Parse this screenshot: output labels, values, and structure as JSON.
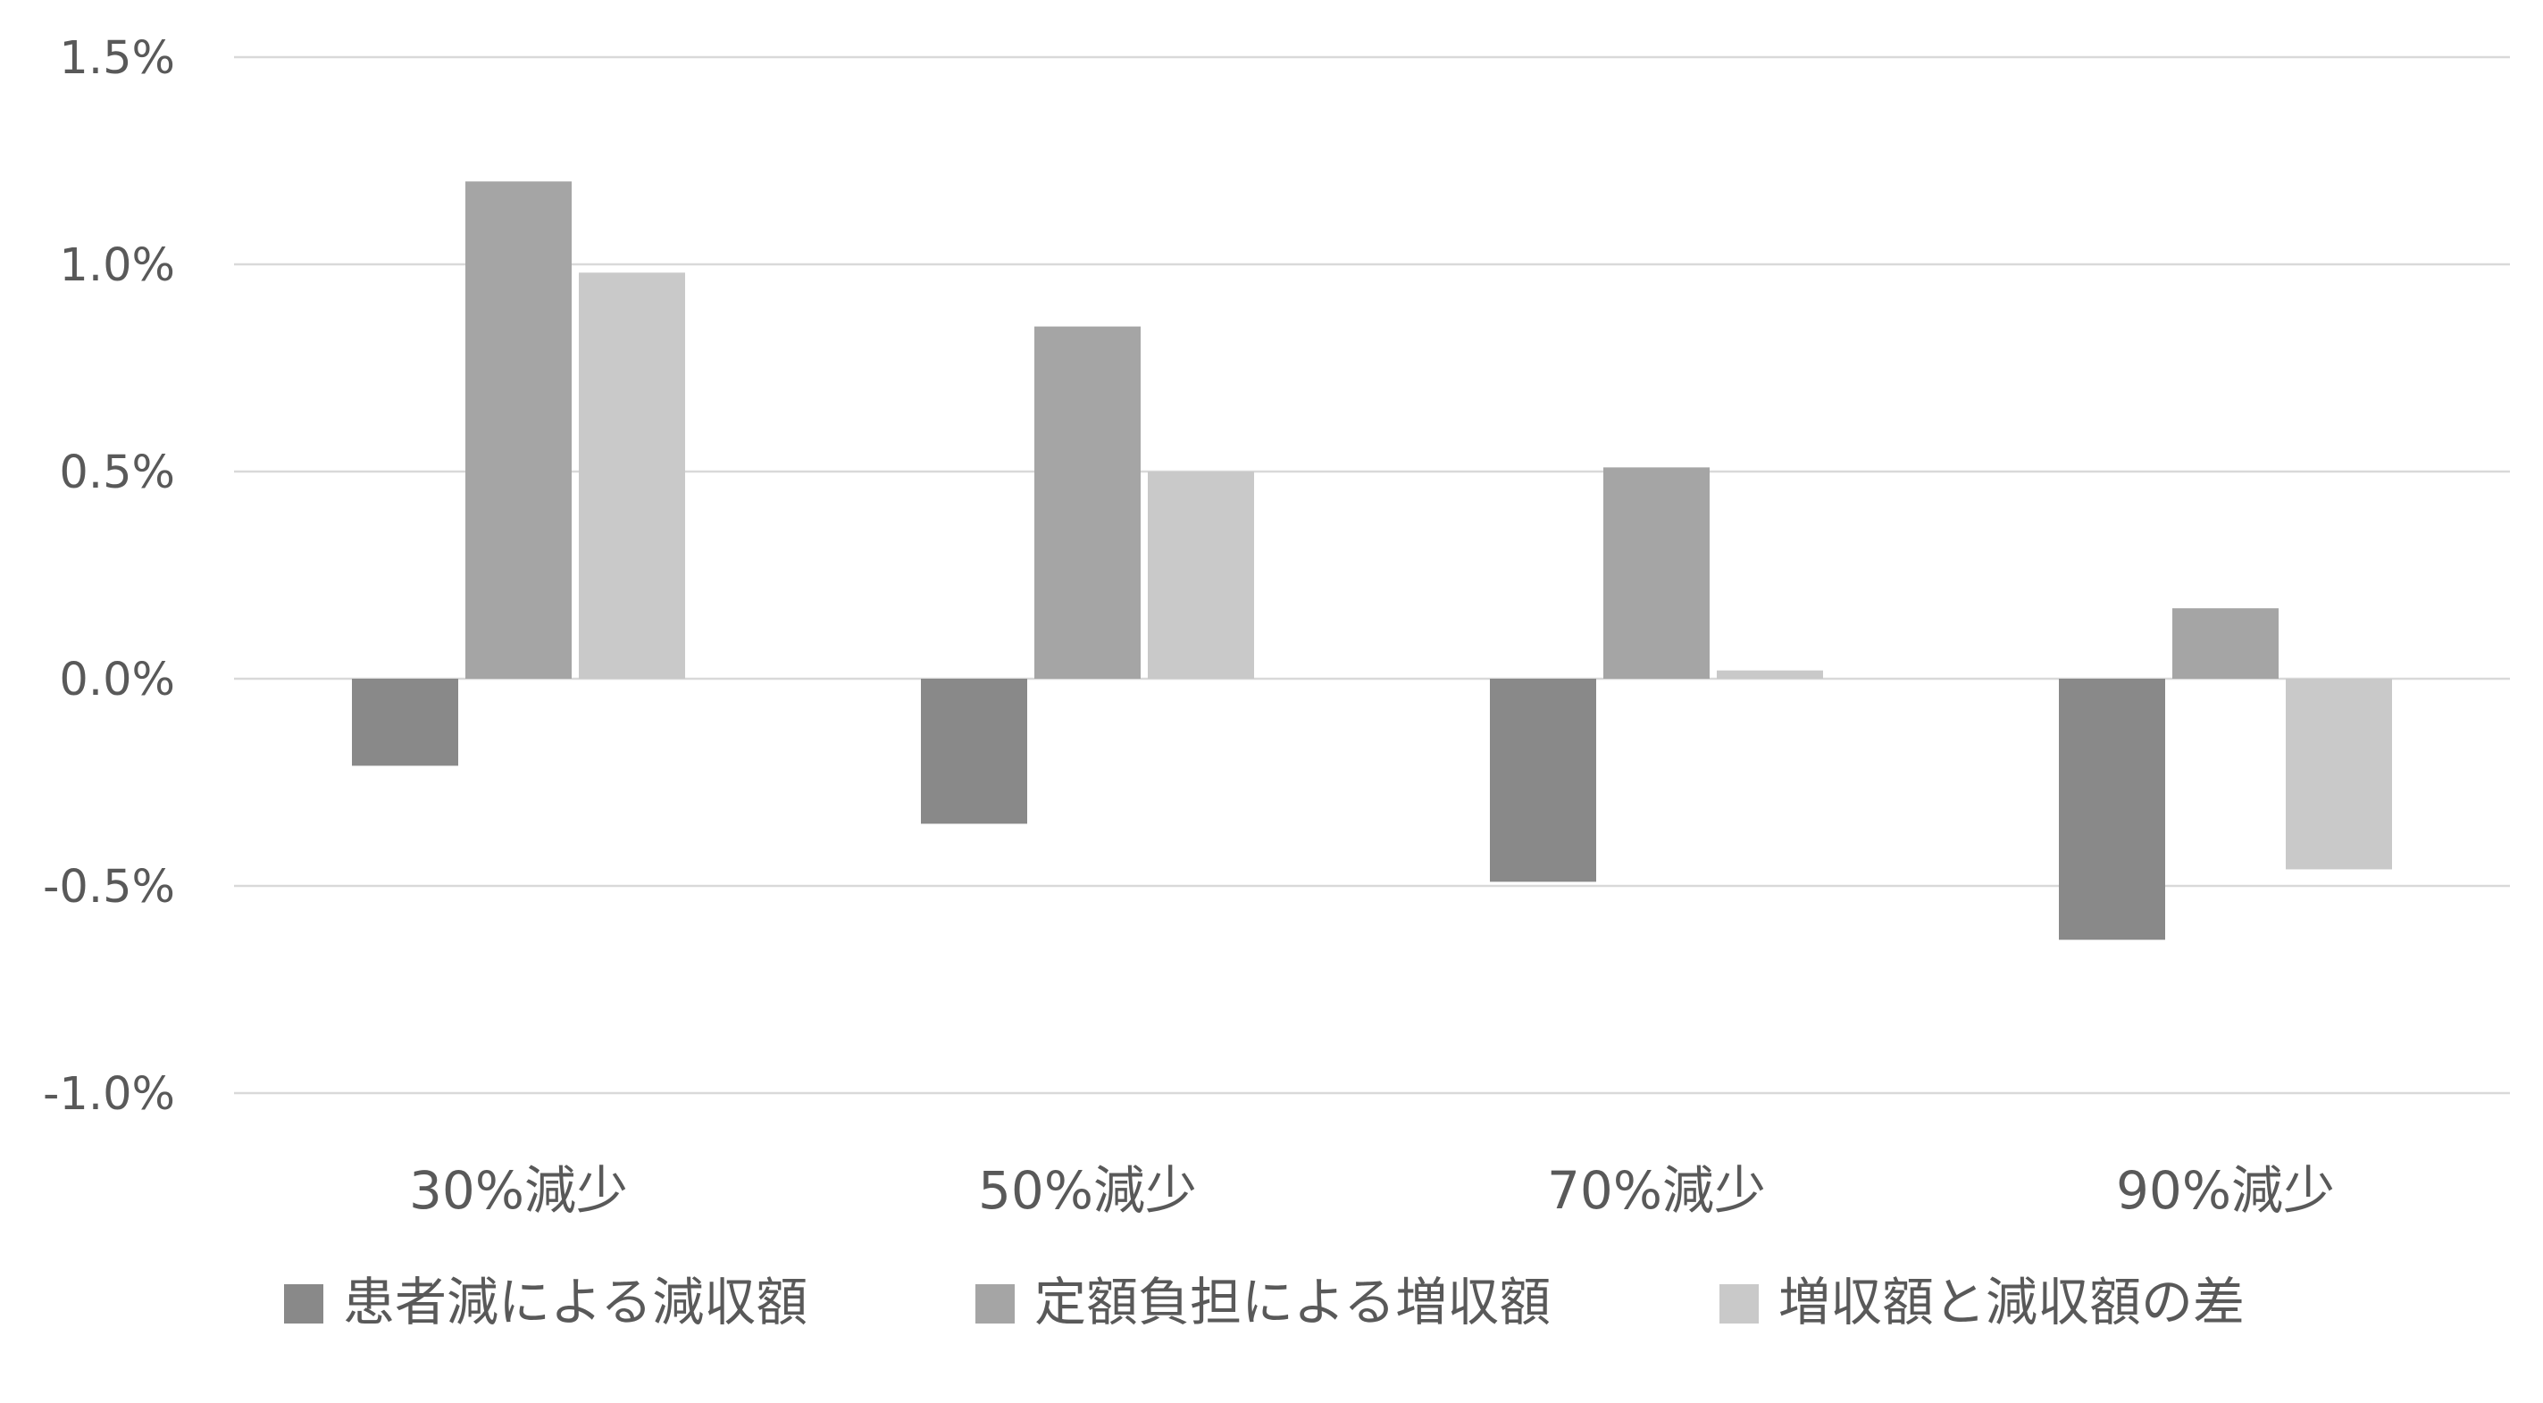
{
  "chart_data": {
    "type": "bar",
    "title": "",
    "xlabel": "",
    "ylabel": "",
    "categories": [
      "30%減少",
      "50%減少",
      "70%減少",
      "90%減少"
    ],
    "series": [
      {
        "name": "患者減による減収額",
        "color": "#898989",
        "values": [
          -0.21,
          -0.35,
          -0.49,
          -0.63
        ]
      },
      {
        "name": "定額負担による増収額",
        "color": "#a5a5a5",
        "values": [
          1.2,
          0.85,
          0.51,
          0.17
        ]
      },
      {
        "name": "増収額と減収額の差",
        "color": "#c9c9c9",
        "values": [
          0.98,
          0.5,
          0.02,
          -0.46
        ]
      }
    ],
    "ylim": [
      -1.0,
      1.5
    ],
    "yticks": [
      1.5,
      1.0,
      0.5,
      0.0,
      -0.5,
      -1.0
    ],
    "ytick_labels": [
      "1.5%",
      "1.0%",
      "0.5%",
      "0.0%",
      "-0.5%",
      "-1.0%"
    ],
    "grid": true,
    "legend_position": "bottom"
  }
}
